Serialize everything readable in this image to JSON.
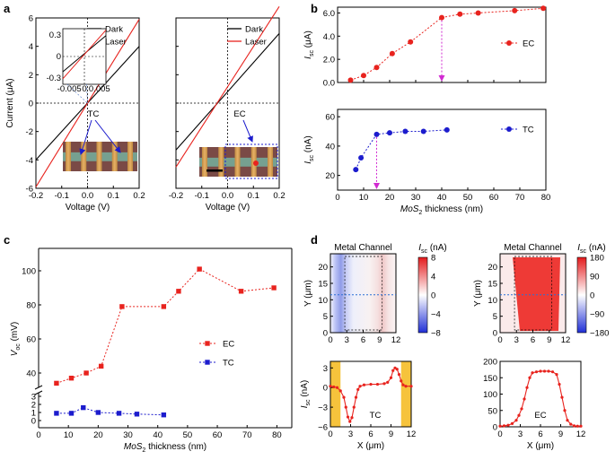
{
  "panel_labels": {
    "a": "a",
    "b": "b",
    "c": "c",
    "d": "d"
  },
  "chart_data": [
    {
      "id": "a1",
      "type": "line",
      "xlabel": "Voltage (V)",
      "ylabel": "Current (μA)",
      "xlim": [
        -0.2,
        0.2
      ],
      "ylim": [
        -6,
        6
      ],
      "xticks": [
        "-0.2",
        "-0.1",
        "0.0",
        "0.1",
        "0.2"
      ],
      "yticks": [
        "-6",
        "-4",
        "-2",
        "0",
        "2",
        "4",
        "6"
      ],
      "series": [
        {
          "name": "Dark",
          "color": "#000000",
          "x": [
            -0.2,
            0.2
          ],
          "y": [
            -4.0,
            4.0
          ]
        },
        {
          "name": "Laser",
          "color": "#e8231e",
          "x": [
            -0.2,
            0.2
          ],
          "y": [
            -5.9,
            5.9
          ]
        }
      ],
      "annotation": "TC",
      "inset": {
        "xticks": [
          "-0.005",
          "0",
          "0.005"
        ],
        "yticks": [
          "0.3",
          "0",
          "-0.3"
        ],
        "xlim": [
          -0.007,
          0.007
        ],
        "ylim": [
          -0.4,
          0.4
        ]
      }
    },
    {
      "id": "a2",
      "type": "line",
      "xlabel": "Voltage (V)",
      "ylabel": "",
      "xlim": [
        -0.2,
        0.2
      ],
      "ylim": [
        -6,
        6
      ],
      "xticks": [
        "-0.2",
        "-0.1",
        "0.0",
        "0.1",
        "0.2"
      ],
      "yticks": [],
      "series": [
        {
          "name": "Dark",
          "color": "#000000",
          "x": [
            -0.2,
            0.2
          ],
          "y": [
            -3.3,
            4.9
          ]
        },
        {
          "name": "Laser",
          "color": "#e8231e",
          "x": [
            -0.2,
            0.2
          ],
          "y": [
            -4.5,
            6.8
          ]
        }
      ],
      "annotation": "EC"
    },
    {
      "id": "b1",
      "type": "scatter",
      "ylabel": "Isc (μA)",
      "ylabel_main": "I",
      "ylabel_sub": "sc",
      "ylabel_unit": " (μA)",
      "xlim": [
        0,
        80
      ],
      "ylim": [
        0,
        6.5
      ],
      "yticks": [
        "0.0",
        "2.0",
        "4.0",
        "6.0"
      ],
      "series": [
        {
          "name": "EC",
          "color": "#e8231e",
          "x": [
            5,
            10,
            15,
            21,
            28,
            40,
            47,
            54,
            68,
            79
          ],
          "y": [
            0.2,
            0.6,
            1.3,
            2.5,
            3.5,
            5.6,
            5.9,
            6.0,
            6.2,
            6.4
          ]
        }
      ],
      "arrow_x": 40
    },
    {
      "id": "b2",
      "type": "scatter",
      "xlabel": "MoS2 thickness (nm)",
      "xlabel_main": "MoS",
      "xlabel_sub": "2",
      "xlabel_rest": " thickness (nm)",
      "ylabel": "Isc (nA)",
      "ylabel_main": "I",
      "ylabel_sub": "sc",
      "ylabel_unit": " (nA)",
      "xlim": [
        0,
        80
      ],
      "ylim": [
        10,
        65
      ],
      "xticks": [
        "0",
        "10",
        "20",
        "30",
        "40",
        "50",
        "60",
        "70",
        "80"
      ],
      "yticks": [
        "20",
        "40",
        "60"
      ],
      "series": [
        {
          "name": "TC",
          "color": "#1c1ccd",
          "x": [
            7,
            9,
            15,
            20,
            26,
            33,
            42
          ],
          "y": [
            24,
            32,
            48,
            49,
            50,
            50,
            51
          ]
        }
      ],
      "arrow_x": 15
    },
    {
      "id": "c",
      "type": "scatter",
      "xlabel": "MoS2 thickness (nm)",
      "xlabel_main": "MoS",
      "xlabel_sub": "2",
      "xlabel_rest": " thickness (nm)",
      "ylabel": "Voc (mV)",
      "ylabel_main": "V",
      "ylabel_sub": "oc",
      "ylabel_unit": " (mV)",
      "xlim": [
        0,
        85
      ],
      "xticks": [
        "0",
        "10",
        "20",
        "30",
        "40",
        "50",
        "60",
        "70",
        "80"
      ],
      "yticks_upper": [
        "40",
        "60",
        "80",
        "100"
      ],
      "yticks_lower": [
        "0",
        "1",
        "2",
        "3"
      ],
      "series": [
        {
          "name": "EC",
          "color": "#e8231e",
          "x": [
            6,
            11,
            16,
            21,
            28,
            42,
            47,
            54,
            68,
            79
          ],
          "y": [
            34,
            37,
            40,
            44,
            79,
            79,
            88,
            101,
            88,
            90
          ]
        },
        {
          "name": "TC",
          "color": "#1c1ccd",
          "x": [
            6,
            11,
            15,
            20,
            27,
            33,
            42
          ],
          "y": [
            0.9,
            0.9,
            1.6,
            1.0,
            0.9,
            0.8,
            0.7
          ]
        }
      ]
    },
    {
      "id": "d_map_tc",
      "type": "heatmap",
      "title": "Metal Channel",
      "xlim": [
        0,
        12
      ],
      "ylim": [
        0,
        24
      ],
      "xticks": [
        "0",
        "3",
        "6",
        "9",
        "12"
      ],
      "yticks": [
        "0",
        "5",
        "10",
        "15",
        "20"
      ],
      "ylabel": "Y (μm)",
      "colorbar_title": "Isc (nA)",
      "colorbar_main": "I",
      "colorbar_sub": "sc",
      "colorbar_unit": " (nA)",
      "colorbar_ticks": [
        "8",
        "4",
        "0",
        "−4",
        "−8"
      ]
    },
    {
      "id": "d_map_ec",
      "type": "heatmap",
      "title": "Metal Channel",
      "xlim": [
        0,
        12
      ],
      "ylim": [
        0,
        24
      ],
      "xticks": [
        "0",
        "3",
        "6",
        "9",
        "12"
      ],
      "yticks": [
        "0",
        "5",
        "10",
        "15",
        "20"
      ],
      "ylabel": "Y (μm)",
      "colorbar_title": "Isc (nA)",
      "colorbar_main": "I",
      "colorbar_sub": "sc",
      "colorbar_unit": " (nA)",
      "colorbar_ticks": [
        "180",
        "90",
        "0",
        "−90",
        "−180"
      ]
    },
    {
      "id": "d_line_tc",
      "type": "line",
      "xlabel": "X (μm)",
      "ylabel": "Isc (nA)",
      "ylabel_main": "I",
      "ylabel_sub": "sc",
      "ylabel_unit": " (nA)",
      "xlim": [
        0,
        12
      ],
      "ylim": [
        -6,
        4
      ],
      "xticks": [
        "0",
        "3",
        "6",
        "9",
        "12"
      ],
      "yticks": [
        "3",
        "0",
        "−3",
        "−6"
      ],
      "label": "TC",
      "color": "#e8231e",
      "x": [
        0,
        0.5,
        1,
        1.5,
        2,
        2.3,
        2.6,
        2.9,
        3.2,
        3.5,
        3.8,
        4.1,
        4.4,
        5,
        6,
        7,
        8,
        8.5,
        9,
        9.3,
        9.6,
        9.9,
        10.2,
        10.5,
        10.8,
        11.2,
        12
      ],
      "y": [
        0.2,
        0.1,
        0,
        -0.5,
        -1.5,
        -3,
        -4.5,
        -5.2,
        -4.6,
        -3,
        -1.5,
        -0.3,
        0.2,
        0.4,
        0.5,
        0.5,
        0.6,
        0.8,
        1.5,
        2.6,
        3.0,
        2.8,
        2.0,
        1.0,
        0.4,
        0.2,
        0.2
      ]
    },
    {
      "id": "d_line_ec",
      "type": "line",
      "xlabel": "X (μm)",
      "ylabel": "",
      "xlim": [
        0,
        12
      ],
      "ylim": [
        0,
        200
      ],
      "xticks": [
        "0",
        "3",
        "6",
        "9",
        "12"
      ],
      "yticks": [
        "0",
        "50",
        "100",
        "150",
        "200"
      ],
      "label": "EC",
      "color": "#e8231e",
      "x": [
        0,
        0.6,
        1.2,
        1.8,
        2.4,
        2.8,
        3.2,
        3.6,
        4.0,
        4.4,
        4.8,
        5.4,
        6,
        6.6,
        7.2,
        7.8,
        8.4,
        8.8,
        9.2,
        9.6,
        10.0,
        10.5,
        11,
        11.5,
        12
      ],
      "y": [
        2,
        3,
        5,
        10,
        20,
        35,
        55,
        85,
        120,
        150,
        165,
        168,
        170,
        170,
        170,
        168,
        160,
        130,
        90,
        50,
        20,
        8,
        3,
        2,
        2
      ]
    }
  ]
}
